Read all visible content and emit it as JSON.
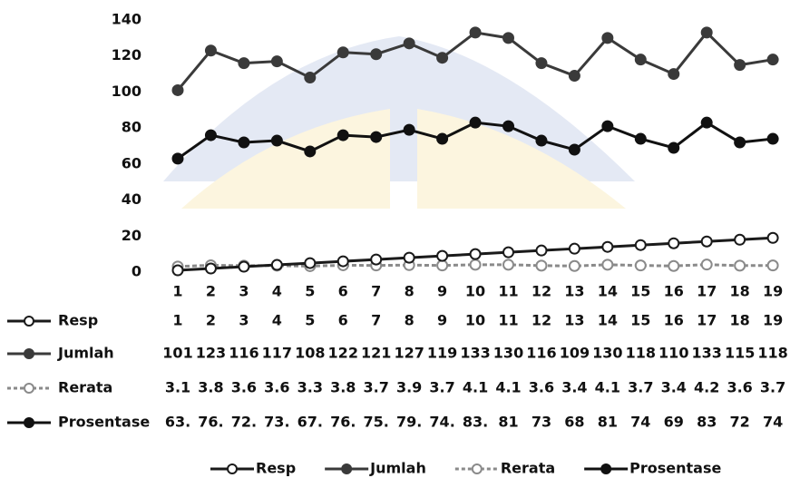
{
  "chart_data": {
    "type": "line",
    "categories": [
      "1",
      "2",
      "3",
      "4",
      "5",
      "6",
      "7",
      "8",
      "9",
      "10",
      "11",
      "12",
      "13",
      "14",
      "15",
      "16",
      "17",
      "18",
      "19"
    ],
    "ylim": [
      0,
      140
    ],
    "yticks": [
      0,
      20,
      40,
      60,
      80,
      100,
      120,
      140
    ],
    "series": [
      {
        "name": "Resp",
        "color": "#1a1a1a",
        "marker": "open",
        "dashed": false,
        "values": [
          1,
          2,
          3,
          4,
          5,
          6,
          7,
          8,
          9,
          10,
          11,
          12,
          13,
          14,
          15,
          16,
          17,
          18,
          19
        ]
      },
      {
        "name": "Jumlah",
        "color": "#3a3a3a",
        "marker": "filled",
        "dashed": false,
        "values": [
          101,
          123,
          116,
          117,
          108,
          122,
          121,
          127,
          119,
          133,
          130,
          116,
          109,
          130,
          118,
          110,
          133,
          115,
          118
        ]
      },
      {
        "name": "Rerata",
        "color": "#8a8a8a",
        "marker": "open",
        "dashed": true,
        "values": [
          3.1,
          3.8,
          3.6,
          3.6,
          3.3,
          3.8,
          3.7,
          3.9,
          3.7,
          4.1,
          4.1,
          3.6,
          3.4,
          4.1,
          3.7,
          3.4,
          4.2,
          3.6,
          3.7
        ]
      },
      {
        "name": "Prosentase",
        "color": "#111111",
        "marker": "filled",
        "dashed": false,
        "values": [
          63,
          76,
          72,
          73,
          67,
          76,
          75,
          79,
          74,
          83,
          81,
          73,
          68,
          81,
          74,
          69,
          83,
          72,
          74
        ],
        "value_labels": [
          "63.",
          "76.",
          "72.",
          "73.",
          "67.",
          "76.",
          "75.",
          "79.",
          "74.",
          "83.",
          "81",
          "73",
          "68",
          "81",
          "74",
          "69",
          "83",
          "72",
          "74"
        ]
      }
    ]
  }
}
